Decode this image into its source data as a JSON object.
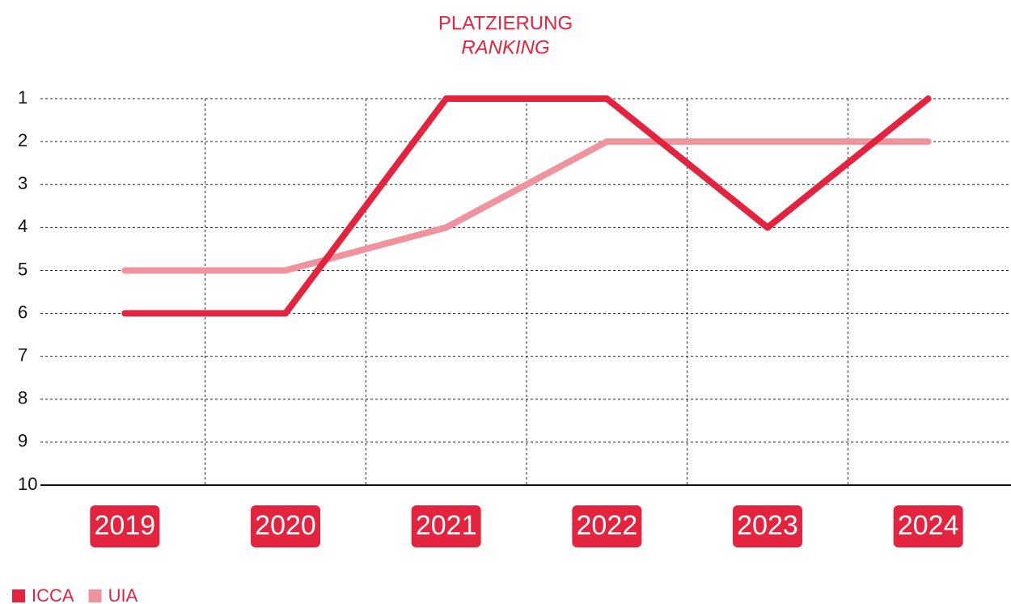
{
  "chart_data": {
    "type": "line",
    "title": "PLATZIERUNG",
    "subtitle": "RANKING",
    "categories": [
      "2019",
      "2020",
      "2021",
      "2022",
      "2023",
      "2024"
    ],
    "series": [
      {
        "name": "ICCA",
        "color": "#e4233f",
        "values": [
          6,
          6,
          1,
          1,
          4,
          1
        ]
      },
      {
        "name": "UIA",
        "color": "#f0939e",
        "values": [
          5,
          5,
          4,
          2,
          2,
          2
        ]
      }
    ],
    "ylim": [
      10,
      1
    ],
    "yticks": [
      1,
      2,
      3,
      4,
      5,
      6,
      7,
      8,
      9,
      10
    ],
    "grid": true
  }
}
